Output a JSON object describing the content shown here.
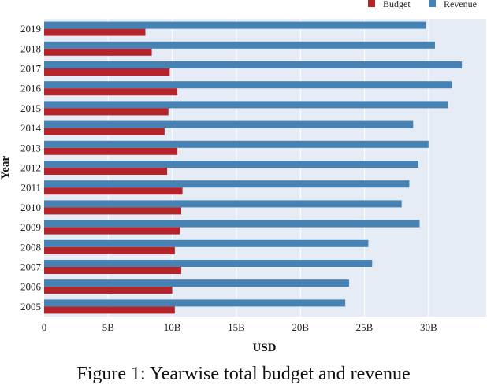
{
  "chart_data": {
    "type": "bar",
    "orientation": "horizontal",
    "categories": [
      "2019",
      "2018",
      "2017",
      "2016",
      "2015",
      "2014",
      "2013",
      "2012",
      "2011",
      "2010",
      "2009",
      "2008",
      "2007",
      "2006",
      "2005"
    ],
    "series": [
      {
        "name": "Budget",
        "color": "#b5232b",
        "values": [
          7.9,
          8.4,
          9.8,
          10.4,
          9.7,
          9.4,
          10.4,
          9.6,
          10.8,
          10.7,
          10.6,
          10.2,
          10.7,
          10.0,
          10.2
        ]
      },
      {
        "name": "Revenue",
        "color": "#4682b4",
        "values": [
          29.8,
          30.5,
          32.6,
          31.8,
          31.5,
          28.8,
          30.0,
          29.2,
          28.5,
          27.9,
          29.3,
          25.3,
          25.6,
          23.8,
          23.5
        ]
      }
    ],
    "xlabel": "USD",
    "ylabel": "Year",
    "xlim": [
      0,
      34.5
    ],
    "xticks": [
      0,
      5,
      10,
      15,
      20,
      25,
      30
    ],
    "xtick_labels": [
      "0",
      "5B",
      "10B",
      "15B",
      "20B",
      "25B",
      "30B"
    ],
    "grid": true,
    "legend_position": "top-right",
    "plot_background": "#e5ecf6"
  },
  "caption": "Figure 1: Yearwise total budget and revenue"
}
